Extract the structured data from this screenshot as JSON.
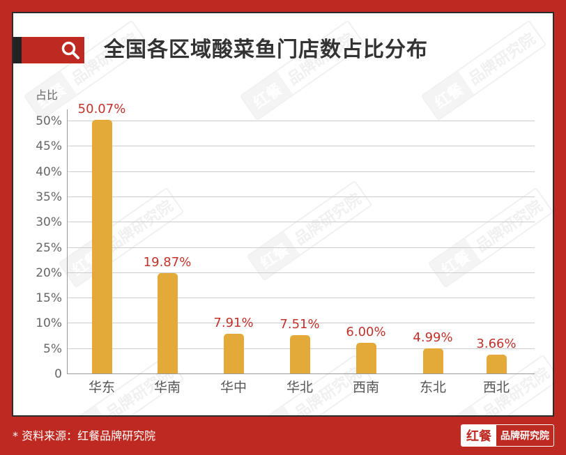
{
  "header": {
    "title": "全国各区域酸菜鱼门店数占比分布",
    "icon": "search-icon"
  },
  "watermark": {
    "left": "红餐",
    "right": "品牌研究院"
  },
  "footer": {
    "source": "* 资料来源：红餐品牌研究院",
    "logo_left": "红餐",
    "logo_right": "品牌研究院"
  },
  "colors": {
    "frame": "#BE2A22",
    "bar": "#E3AA3A",
    "value_label": "#C0322A",
    "title": "#333333"
  },
  "chart_data": {
    "type": "bar",
    "title": "全国各区域酸菜鱼门店数占比分布",
    "xlabel": "",
    "ylabel": "占比",
    "categories": [
      "华东",
      "华南",
      "华中",
      "华北",
      "西南",
      "东北",
      "西北"
    ],
    "values": [
      50.07,
      19.87,
      7.91,
      7.51,
      6.0,
      4.99,
      3.66
    ],
    "value_labels": [
      "50.07%",
      "19.87%",
      "7.91%",
      "7.51%",
      "6.00%",
      "4.99%",
      "3.66%"
    ],
    "yticks": [
      "0",
      "5%",
      "10%",
      "15%",
      "20%",
      "25%",
      "30%",
      "35%",
      "40%",
      "45%",
      "50%"
    ],
    "ylim": [
      0,
      50
    ],
    "grid": true,
    "legend": "none"
  }
}
